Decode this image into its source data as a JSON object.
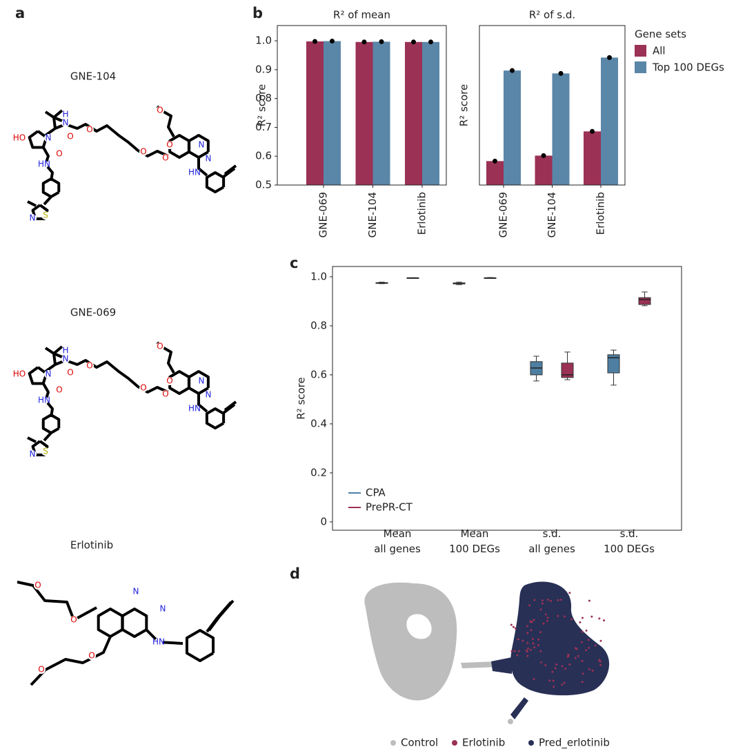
{
  "panel_labels": [
    "a",
    "b",
    "c",
    "d"
  ],
  "molecules": [
    {
      "name": "GNE-104",
      "atoms": [
        "HO",
        "N",
        "H",
        "N",
        "O",
        "O",
        "O",
        "HN",
        "O",
        "O",
        "O",
        "O",
        "N",
        "N",
        "HN",
        "N",
        "S"
      ]
    },
    {
      "name": "GNE-069",
      "atoms": [
        "HO",
        "N",
        "H",
        "N",
        "O",
        "O",
        "O",
        "HN",
        "O",
        "O",
        "O",
        "O",
        "N",
        "N",
        "HN",
        "N",
        "S"
      ]
    },
    {
      "name": "Erlotinib",
      "atoms": [
        "O",
        "O",
        "N",
        "N",
        "HN",
        "O",
        "O"
      ]
    }
  ],
  "chart_data": [
    {
      "type": "bar",
      "title": "R² of mean",
      "y_label": "R² score",
      "categories": [
        "GNE-069",
        "GNE-104",
        "Erlotinib"
      ],
      "series": [
        {
          "color": "#9b3155",
          "values": [
            0.998,
            0.996,
            0.996
          ]
        },
        {
          "color": "#5a86a8",
          "values": [
            0.999,
            0.997,
            0.996
          ]
        }
      ],
      "ylim": [
        0.5,
        1.053
      ],
      "yticks": [
        0.5,
        0.6,
        0.7,
        0.8,
        0.9,
        {
          "value": 1,
          "label": "1.0"
        }
      ]
    },
    {
      "type": "bar",
      "title": "R² of s.d.",
      "y_label": "R² score",
      "categories": [
        "GNE-069",
        "GNE-104",
        "Erlotinib"
      ],
      "series": [
        {
          "name": "All",
          "color": "#9b3155",
          "values": [
            0.583,
            0.602,
            0.686
          ]
        },
        {
          "name": "Top 100 DEGs",
          "color": "#5a86a8",
          "values": [
            0.897,
            0.887,
            0.942
          ]
        }
      ],
      "ylim": [
        0.5,
        1.053
      ],
      "legend_title": "Gene sets",
      "legend": "right"
    },
    {
      "type": "box",
      "y_label": "R² score",
      "categories": [
        "Mean\nall genes",
        "Mean\n100 DEGs",
        "s.d.\nall genes",
        "s.d.\n100 DEGs"
      ],
      "series": [
        {
          "name": "CPA",
          "color": "#4e7fa3",
          "values": [
            [
              0.972,
              0.974,
              0.975,
              0.976,
              0.978
            ],
            [
              0.968,
              0.971,
              0.973,
              0.975,
              0.978
            ],
            [
              0.575,
              0.6,
              0.628,
              0.654,
              0.676
            ],
            [
              0.558,
              0.608,
              0.67,
              0.682,
              0.701
            ]
          ]
        },
        {
          "name": "PrePR-CT",
          "color": "#9b3155",
          "values": [
            [
              0.994,
              0.995,
              0.995,
              0.996,
              0.996
            ],
            [
              0.994,
              0.995,
              0.995,
              0.996,
              0.997
            ],
            [
              0.58,
              0.589,
              0.6,
              0.648,
              0.693
            ],
            [
              0.882,
              0.887,
              0.907,
              0.915,
              0.938
            ]
          ]
        }
      ],
      "ylim": [
        -0.034,
        1.042
      ],
      "yticks": [
        0,
        0.2,
        0.4,
        0.6,
        0.8,
        {
          "value": 1,
          "label": "1.0"
        }
      ],
      "legend": "lower left"
    },
    {
      "type": "scatter",
      "series": [
        {
          "name": "Control",
          "color": "#bdbdbd"
        },
        {
          "name": "Erlotinib",
          "color": "#9b3155"
        },
        {
          "name": "Pred_erlotinib",
          "color": "#283056"
        }
      ],
      "legend": "bottom"
    }
  ]
}
